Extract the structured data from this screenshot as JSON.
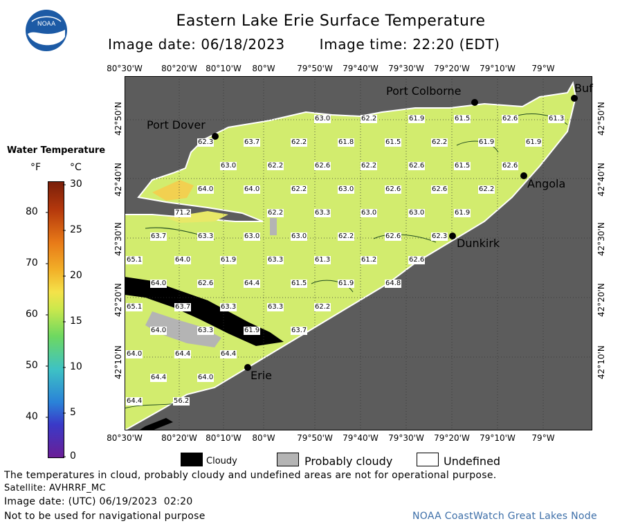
{
  "title": "Eastern Lake Erie Surface Temperature",
  "image_date_label": "Image date: 06/18/2023",
  "image_time_label": "Image time: 22:20 (EDT)",
  "logo_text": "NOAA",
  "legend": {
    "title": "Water Temperature",
    "unit_f": "°F",
    "unit_c": "°C",
    "f_ticks": [
      "80",
      "70",
      "60",
      "50",
      "40"
    ],
    "c_ticks": [
      "30",
      "25",
      "20",
      "15",
      "10",
      "5",
      "0"
    ]
  },
  "lon_labels": [
    "80°30'W",
    "80°20'W",
    "80°10'W",
    "80°W",
    "79°50'W",
    "79°40'W",
    "79°30'W",
    "79°20'W",
    "79°10'W",
    "79°W"
  ],
  "lat_labels": [
    "42°50'N",
    "42°40'N",
    "42°30'N",
    "42°20'N",
    "42°10'N"
  ],
  "places": [
    "Port Colborne",
    "Buf",
    "Port Dover",
    "Angola",
    "Dunkirk",
    "Erie"
  ],
  "temperature_labels": [
    "63.0",
    "62.2",
    "61.9",
    "61.5",
    "62.6",
    "61.3",
    "62.3",
    "63.7",
    "62.2",
    "61.8",
    "61.5",
    "62.2",
    "61.9",
    "61.9",
    "63.0",
    "62.2",
    "62.6",
    "62.2",
    "62.6",
    "61.5",
    "62.6",
    "64.0",
    "64.0",
    "62.2",
    "63.0",
    "62.6",
    "62.6",
    "62.2",
    "71.2",
    "62.2",
    "63.3",
    "63.0",
    "63.0",
    "61.9",
    "63.7",
    "63.3",
    "63.0",
    "63.0",
    "62.2",
    "62.6",
    "62.3",
    "65.1",
    "64.0",
    "61.9",
    "63.3",
    "61.3",
    "61.2",
    "62.6",
    "64.0",
    "62.6",
    "64.4",
    "61.5",
    "61.9",
    "64.8",
    "65.1",
    "63.7",
    "63.3",
    "63.3",
    "62.2",
    "64.0",
    "63.3",
    "61.9",
    "63.7",
    "64.0",
    "64.4",
    "64.4",
    "64.4",
    "64.0",
    "64.4",
    "56.2"
  ],
  "key": {
    "cloudy": "Cloudy",
    "probably_cloudy": "Probably cloudy",
    "undefined": "Undefined"
  },
  "footer": {
    "disclaimer": "The temperatures in cloud, probably cloudy and undefined areas are not for operational purpose.",
    "satellite": "Satellite: AVHRRF_MC",
    "utc_date": "Image date: (UTC) 06/19/2023  02:20",
    "nav": "Not to be used for navigational purpose",
    "credit": "NOAA CoastWatch Great Lakes Node"
  },
  "colors": {
    "land": "#5c5c5c",
    "lake": "#d2ec6e",
    "cloud": "#000000",
    "probably_cloud": "#b4b4b4",
    "credit": "#3c6ea8"
  }
}
